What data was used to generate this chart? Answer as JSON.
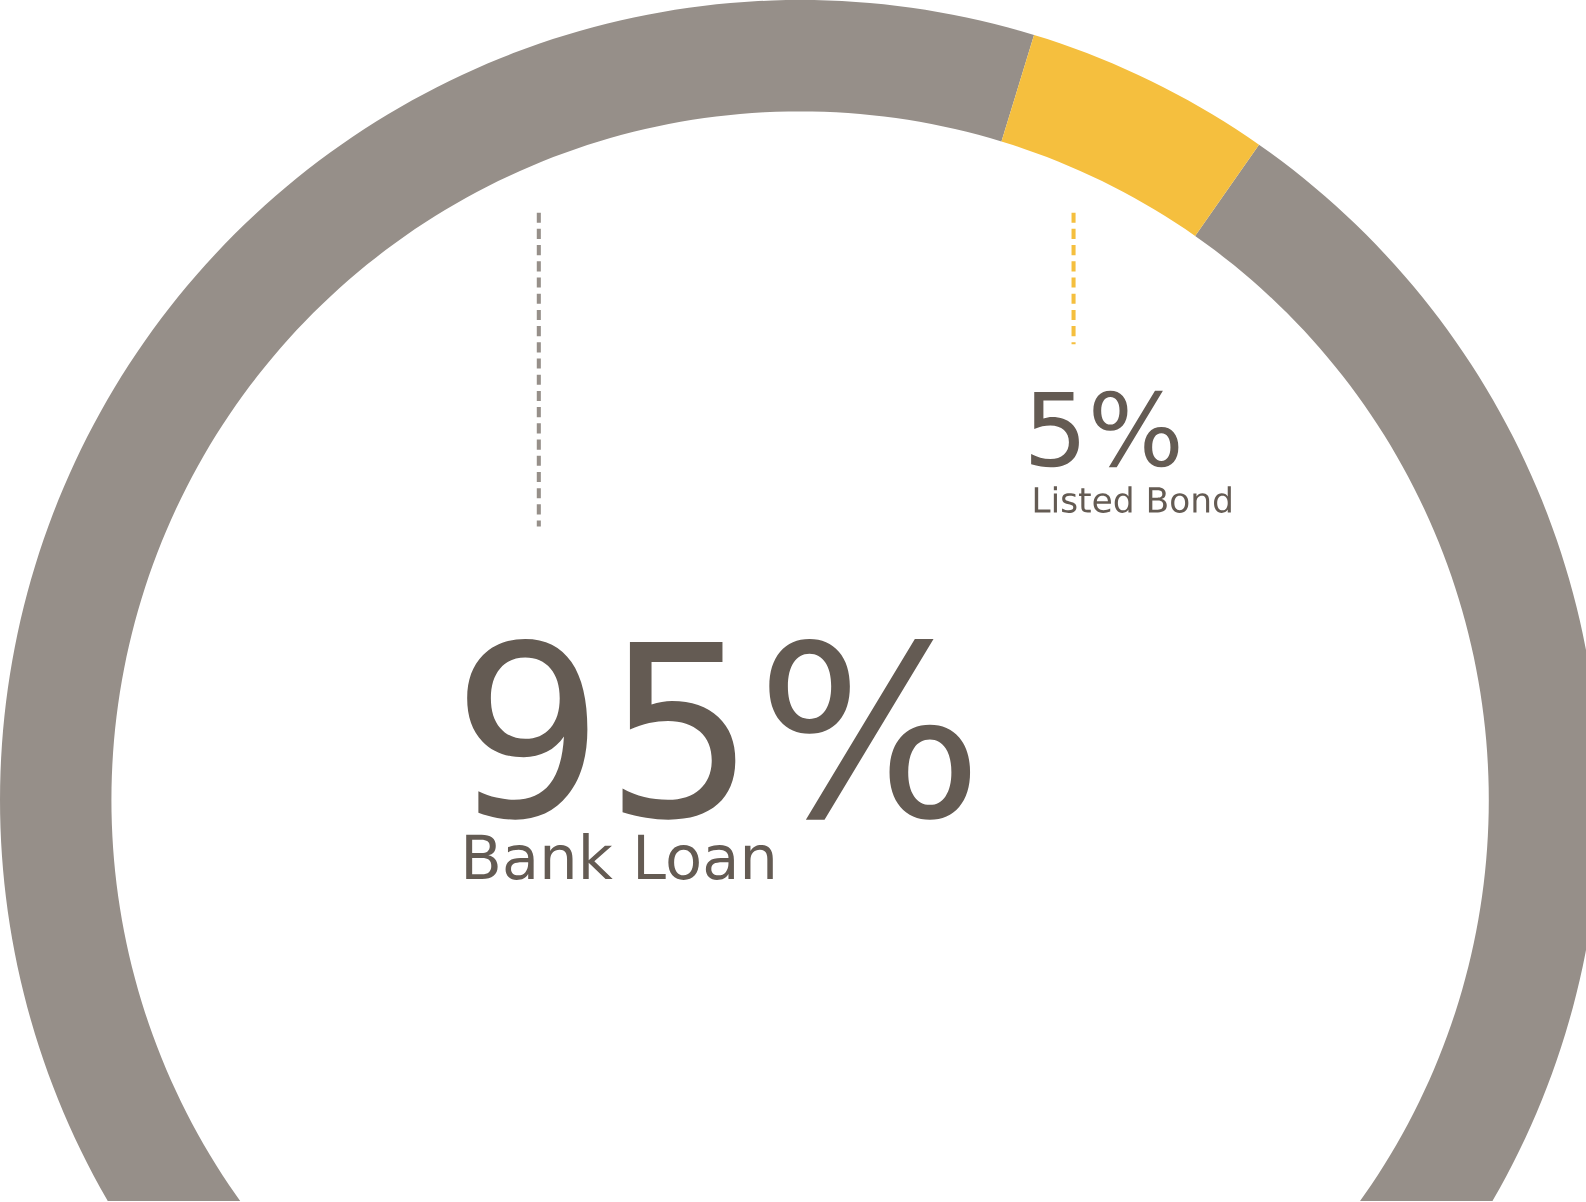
{
  "chart_data": {
    "type": "donut",
    "categories": [
      "Bank Loan",
      "Listed Bond"
    ],
    "values": [
      95,
      5
    ],
    "colors": [
      "#968f89",
      "#f5bf3e"
    ],
    "value_labels": [
      "95%",
      "5%"
    ]
  }
}
